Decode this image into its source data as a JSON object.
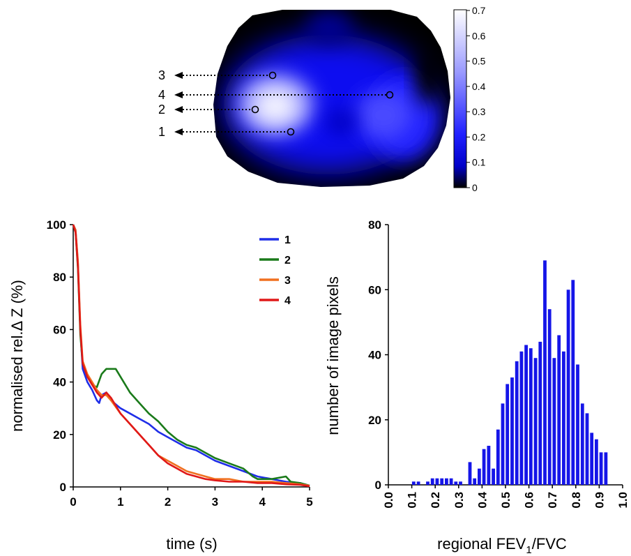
{
  "eit_image": {
    "colorbar": {
      "ticks": [
        "0",
        "0.1",
        "0.2",
        "0.3",
        "0.4",
        "0.5",
        "0.6",
        "0.7"
      ],
      "colors": [
        "#000000",
        "#0000ff",
        "#ffffff"
      ]
    },
    "markers": [
      "3",
      "4",
      "2",
      "1"
    ]
  },
  "chart_data": [
    {
      "type": "line",
      "xlabel": "time (s)",
      "ylabel": "normalised rel.Δ Z (%)",
      "xlim": [
        0,
        5
      ],
      "ylim": [
        0,
        100
      ],
      "x_ticks": [
        "0",
        "1",
        "2",
        "3",
        "4",
        "5"
      ],
      "y_ticks": [
        "0",
        "20",
        "40",
        "60",
        "80",
        "100"
      ],
      "series": [
        {
          "name": "1",
          "color": "#1f2ee8",
          "x": [
            0,
            0.05,
            0.1,
            0.15,
            0.2,
            0.3,
            0.4,
            0.5,
            0.55,
            0.6,
            0.7,
            0.8,
            1.0,
            1.2,
            1.4,
            1.6,
            1.8,
            2.0,
            2.2,
            2.4,
            2.6,
            2.8,
            3.0,
            3.3,
            3.6,
            3.9,
            4.2,
            4.5,
            4.8,
            5.0
          ],
          "values": [
            100,
            98,
            85,
            60,
            45,
            40,
            37,
            33,
            32,
            35,
            36,
            33,
            30,
            28,
            26,
            24,
            21,
            19,
            17,
            15,
            14,
            12,
            10,
            8,
            6,
            4,
            3,
            2,
            1.5,
            0.5
          ]
        },
        {
          "name": "2",
          "color": "#1a7a1a",
          "x": [
            0,
            0.05,
            0.1,
            0.15,
            0.2,
            0.3,
            0.4,
            0.5,
            0.6,
            0.7,
            0.8,
            0.9,
            1.0,
            1.2,
            1.4,
            1.6,
            1.8,
            2.0,
            2.2,
            2.4,
            2.6,
            2.8,
            3.0,
            3.3,
            3.6,
            3.8,
            3.9,
            4.2,
            4.5,
            4.6,
            4.8,
            5.0
          ],
          "values": [
            100,
            97,
            83,
            58,
            47,
            42,
            39,
            38,
            43,
            45,
            45,
            45,
            42,
            36,
            32,
            28,
            25,
            21,
            18,
            16,
            15,
            13,
            11,
            9,
            7,
            4,
            3,
            3,
            4,
            2,
            1.5,
            0.5
          ]
        },
        {
          "name": "3",
          "color": "#f07020",
          "x": [
            0,
            0.05,
            0.1,
            0.15,
            0.2,
            0.3,
            0.4,
            0.5,
            0.6,
            0.7,
            0.8,
            1.0,
            1.2,
            1.4,
            1.6,
            1.8,
            2.0,
            2.2,
            2.4,
            2.6,
            2.8,
            3.0,
            3.3,
            3.6,
            3.9,
            4.2,
            4.5,
            4.8,
            5.0
          ],
          "values": [
            100,
            98,
            86,
            62,
            48,
            43,
            40,
            37,
            35,
            35,
            33,
            28,
            24,
            20,
            16,
            12,
            10,
            8,
            6,
            5,
            4,
            3,
            3,
            2,
            2,
            2,
            1.5,
            1,
            0.5
          ]
        },
        {
          "name": "4",
          "color": "#e01818",
          "x": [
            0,
            0.05,
            0.1,
            0.15,
            0.2,
            0.3,
            0.4,
            0.5,
            0.6,
            0.7,
            0.8,
            1.0,
            1.2,
            1.4,
            1.6,
            1.8,
            2.0,
            2.2,
            2.4,
            2.6,
            2.8,
            3.0,
            3.3,
            3.6,
            3.9,
            4.2,
            4.5,
            4.8,
            5.0
          ],
          "values": [
            100,
            97,
            84,
            60,
            47,
            42,
            39,
            36,
            34,
            36,
            34,
            28,
            24,
            20,
            16,
            12,
            9,
            7,
            5,
            4,
            3,
            2.5,
            2,
            2,
            1.5,
            1.5,
            1,
            0.8,
            0.3
          ]
        }
      ]
    },
    {
      "type": "bar",
      "xlabel": "regional FEV1/FVC",
      "xlabel_main": "regional FEV",
      "xlabel_sub": "1",
      "xlabel_tail": "/FVC",
      "ylabel": "number of image pixels",
      "xlim": [
        0,
        1
      ],
      "ylim": [
        0,
        80
      ],
      "x_ticks": [
        "0.0",
        "0.1",
        "0.2",
        "0.3",
        "0.4",
        "0.5",
        "0.6",
        "0.7",
        "0.8",
        "0.9",
        "1.0"
      ],
      "y_ticks": [
        "0",
        "20",
        "40",
        "60",
        "80"
      ],
      "bar_color": "#1515e8",
      "bin_width": 0.02,
      "x": [
        0.0,
        0.02,
        0.04,
        0.06,
        0.08,
        0.1,
        0.12,
        0.14,
        0.16,
        0.18,
        0.2,
        0.22,
        0.24,
        0.26,
        0.28,
        0.3,
        0.32,
        0.34,
        0.36,
        0.38,
        0.4,
        0.42,
        0.44,
        0.46,
        0.48,
        0.5,
        0.52,
        0.54,
        0.56,
        0.58,
        0.6,
        0.62,
        0.64,
        0.66,
        0.68,
        0.7,
        0.72,
        0.74,
        0.76,
        0.78,
        0.8,
        0.82,
        0.84,
        0.86,
        0.88,
        0.9,
        0.92,
        0.94,
        0.96,
        0.98
      ],
      "values": [
        0,
        0,
        0,
        0,
        0,
        1,
        1,
        0,
        1,
        2,
        2,
        2,
        2,
        2,
        1,
        1,
        0,
        7,
        2,
        5,
        11,
        12,
        5,
        17,
        25,
        31,
        33,
        38,
        41,
        43,
        42,
        39,
        44,
        69,
        54,
        39,
        46,
        41,
        60,
        63,
        37,
        25,
        22,
        16,
        14,
        10,
        10,
        0,
        0,
        0
      ]
    }
  ]
}
